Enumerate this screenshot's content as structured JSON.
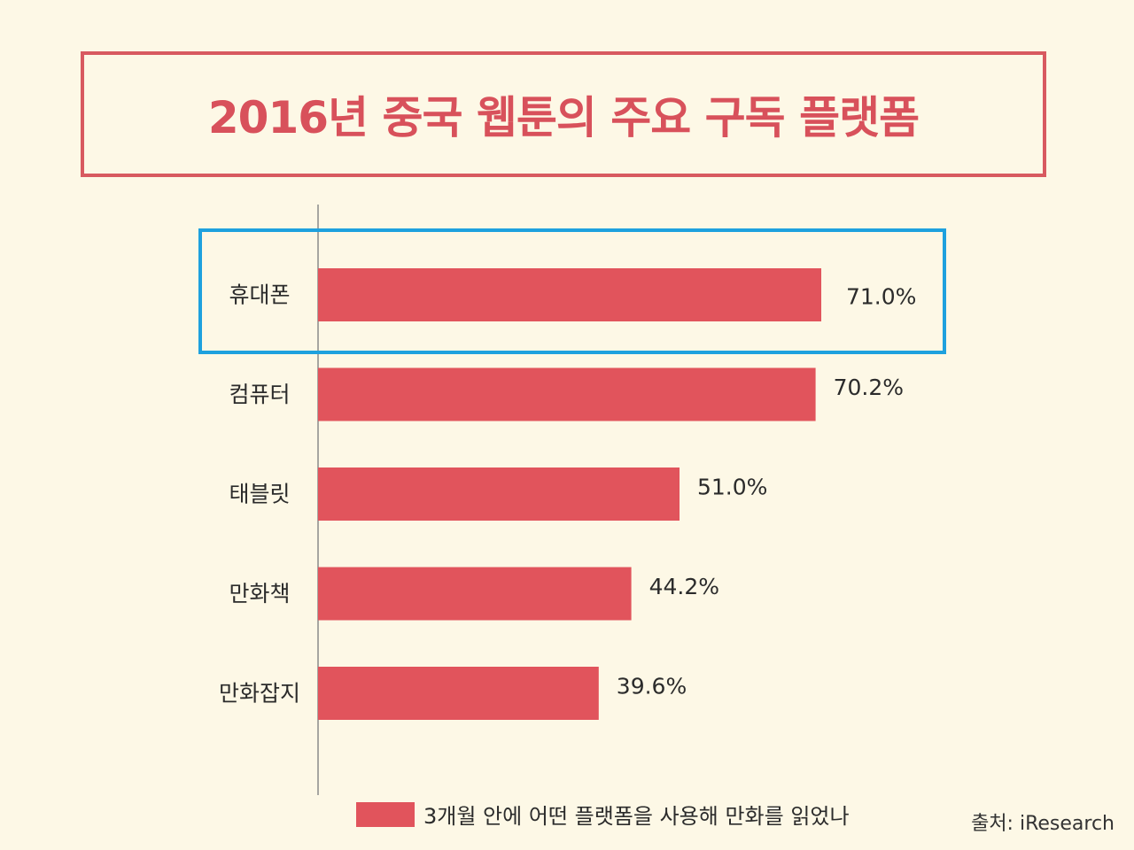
{
  "title": "2016년 중국 웹툰의 주요 구독 플랫폼",
  "legend": "3개월 안에 어떤 플랫폼을 사용해 만화를 읽었나",
  "source_label": "출처: iResearch",
  "colors": {
    "bar": "#e1545c",
    "title": "#d8515b",
    "highlight": "#1ea1de",
    "axis": "#8a8a8a",
    "background": "#fdf8e6"
  },
  "chart_data": {
    "type": "bar",
    "orientation": "horizontal",
    "categories": [
      "휴대폰",
      "컴퓨터",
      "태블릿",
      "만화책",
      "만화잡지"
    ],
    "values": [
      71.0,
      70.2,
      51.0,
      44.2,
      39.6
    ],
    "value_labels": [
      "71.0%",
      "70.2%",
      "51.0%",
      "44.2%",
      "39.6%"
    ],
    "series_name": "3개월 안에 어떤 플랫폼을 사용해 만화를 읽었나",
    "xlim": [
      0,
      100
    ],
    "highlighted_category": "휴대폰",
    "title": "2016년 중국 웹툰의 주요 구독 플랫폼",
    "xlabel": "",
    "ylabel": "",
    "grid": false,
    "legend_position": "bottom"
  }
}
